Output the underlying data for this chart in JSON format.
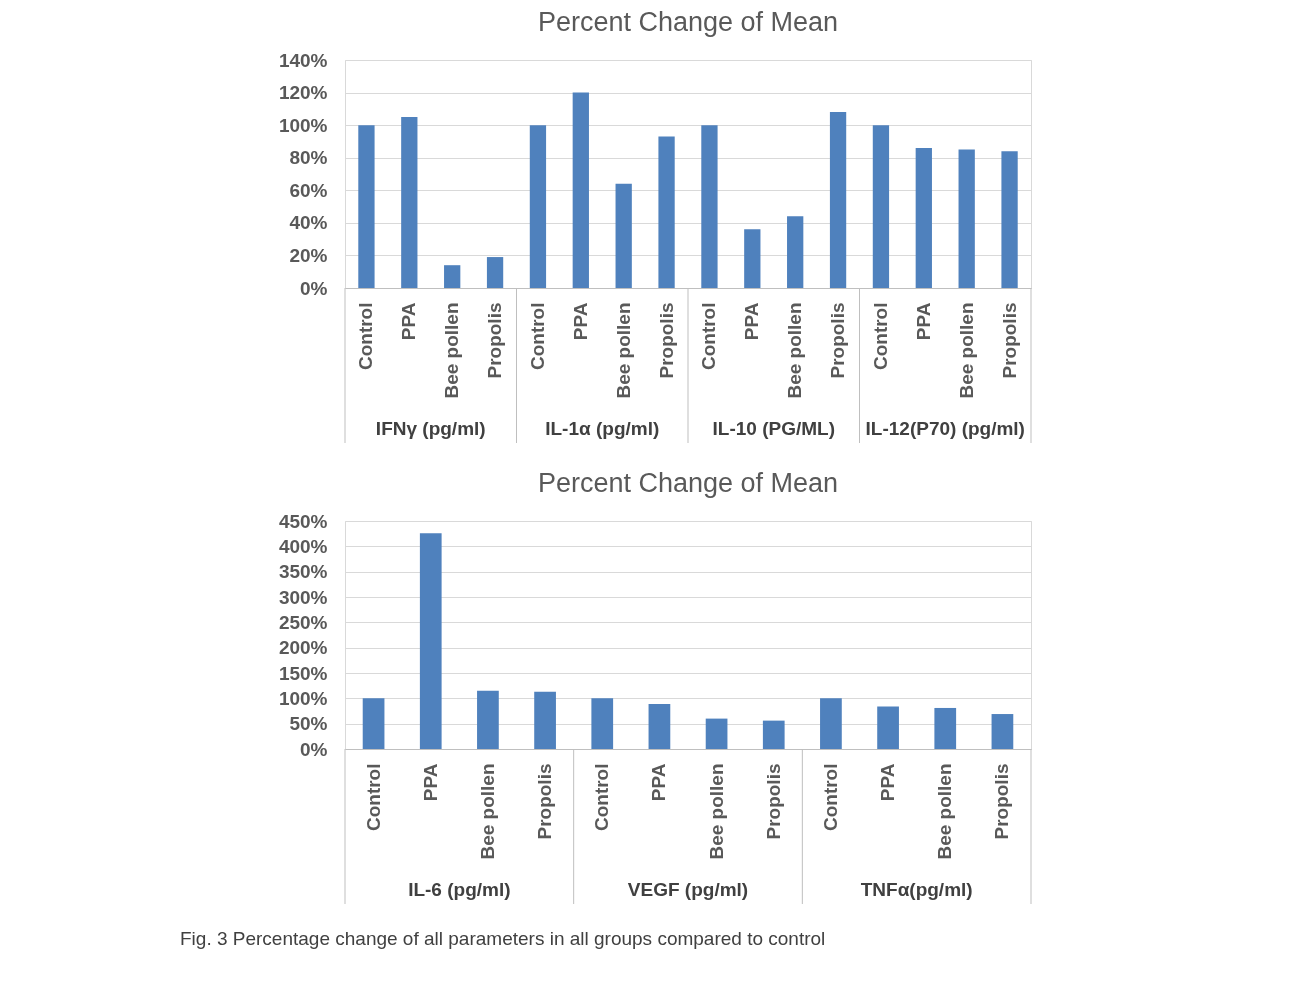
{
  "chart_data": [
    {
      "type": "bar",
      "title": "Percent Change of Mean",
      "categories": [
        "Control",
        "PPA",
        "Bee pollen",
        "Propolis",
        "Control",
        "PPA",
        "Bee pollen",
        "Propolis",
        "Control",
        "PPA",
        "Bee pollen",
        "Propolis",
        "Control",
        "PPA",
        "Bee pollen",
        "Propolis"
      ],
      "values": [
        100,
        105,
        14,
        19,
        100,
        120,
        64,
        93,
        100,
        36,
        44,
        108,
        100,
        86,
        85,
        84
      ],
      "color": "#4f81bd",
      "ylim": [
        0,
        140
      ],
      "yticks": [
        {
          "value": 0,
          "label": "0%"
        },
        {
          "value": 20,
          "label": "20%"
        },
        {
          "value": 40,
          "label": "40%"
        },
        {
          "value": 60,
          "label": "60%"
        },
        {
          "value": 80,
          "label": "80%"
        },
        {
          "value": 100,
          "label": "100%"
        },
        {
          "value": 120,
          "label": "120%"
        },
        {
          "value": 140,
          "label": "140%"
        }
      ],
      "grid": "y",
      "annotations": [
        "IFNγ (pg/ml)",
        "IL-1α (pg/ml)",
        "IL-10 (PG/ML)",
        "IL-12(P70) (pg/ml)"
      ]
    },
    {
      "type": "bar",
      "title": "Percent Change of Mean",
      "categories": [
        "Control",
        "PPA",
        "Bee pollen",
        "Propolis",
        "Control",
        "PPA",
        "Bee pollen",
        "Propolis",
        "Control",
        "PPA",
        "Bee pollen",
        "Propolis"
      ],
      "values": [
        100,
        426,
        115,
        113,
        100,
        89,
        60,
        56,
        100,
        84,
        81,
        69
      ],
      "color": "#4f81bd",
      "ylim": [
        0,
        450
      ],
      "yticks": [
        {
          "value": 0,
          "label": "0%"
        },
        {
          "value": 50,
          "label": "50%"
        },
        {
          "value": 100,
          "label": "100%"
        },
        {
          "value": 150,
          "label": "150%"
        },
        {
          "value": 200,
          "label": "200%"
        },
        {
          "value": 250,
          "label": "250%"
        },
        {
          "value": 300,
          "label": "300%"
        },
        {
          "value": 350,
          "label": "350%"
        },
        {
          "value": 400,
          "label": "400%"
        },
        {
          "value": 450,
          "label": "450%"
        }
      ],
      "grid": "y",
      "annotations": [
        "IL-6 (pg/ml)",
        "VEGF (pg/ml)",
        "TNFα(pg/ml)",
        "Fig. 3 Percentage change of all parameters in all groups compared to control"
      ]
    }
  ]
}
